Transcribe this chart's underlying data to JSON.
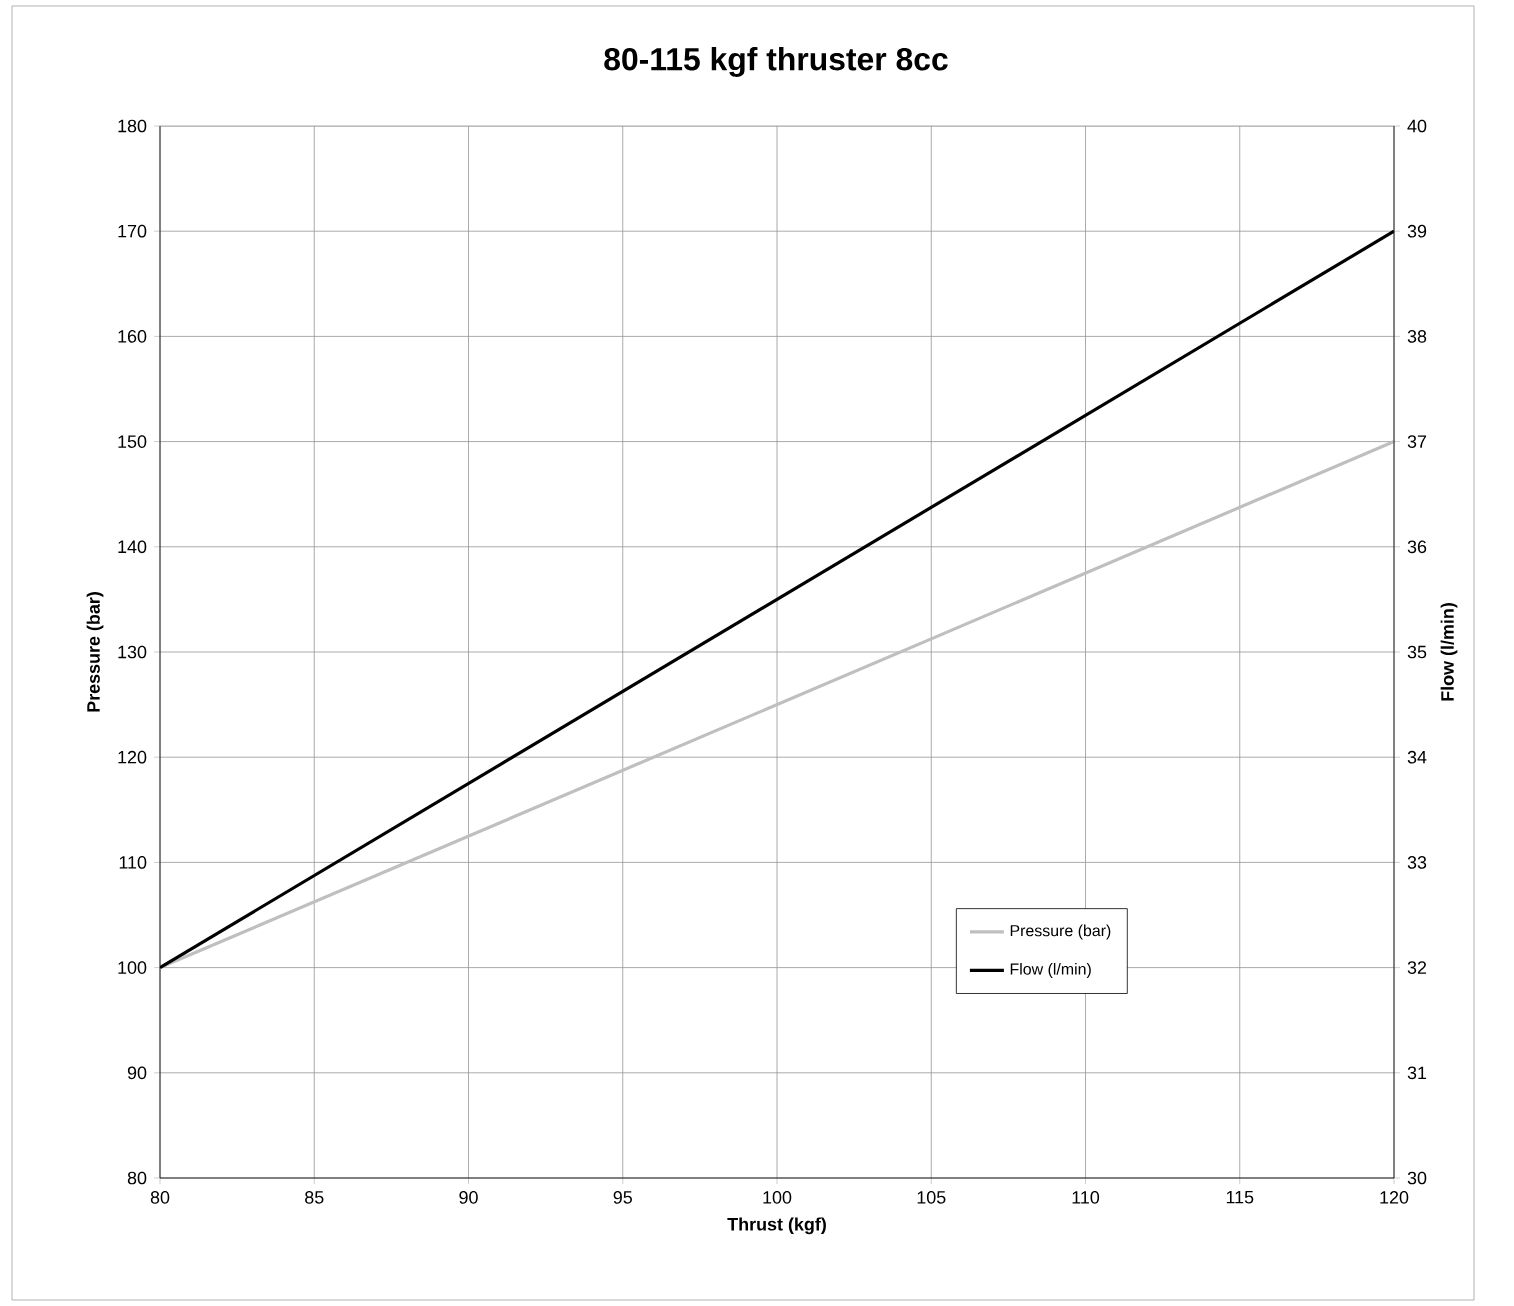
{
  "chart_data": {
    "type": "line",
    "title": "80-115 kgf thruster 8cc",
    "xlabel": "Thrust (kgf)",
    "ylabel": "Pressure (bar)",
    "y2label": "Flow (l/min)",
    "x": [
      80,
      120
    ],
    "series": [
      {
        "name": "Pressure (bar)",
        "color": "#bfbfbf",
        "values": [
          100,
          150
        ]
      },
      {
        "name": "Flow (l/min)",
        "color": "#000000",
        "values": [
          32,
          39
        ],
        "axis": "y2"
      }
    ],
    "xlim": [
      80,
      120
    ],
    "xticks": [
      80,
      85,
      90,
      95,
      100,
      105,
      110,
      115,
      120
    ],
    "ylim": [
      80,
      180
    ],
    "yticks": [
      80,
      90,
      100,
      110,
      120,
      130,
      140,
      150,
      160,
      170,
      180
    ],
    "y2lim": [
      30,
      40
    ],
    "y2ticks": [
      30,
      31,
      32,
      33,
      34,
      35,
      36,
      37,
      38,
      39,
      40
    ],
    "grid": true,
    "legend": "bottom right"
  }
}
